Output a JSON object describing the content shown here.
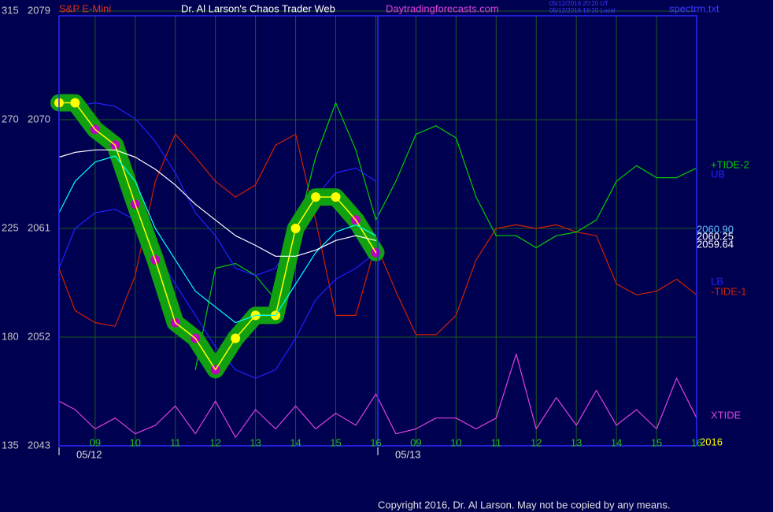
{
  "chart_data": {
    "type": "line",
    "title": "Dr. Al Larson's Chaos Trader Web",
    "instrument": "S&P E-Mini",
    "website": "Daytradingforecasts.com",
    "timestamps": [
      "05/12/2016 20:20 UT",
      "05/12/2016 16:20 Local"
    ],
    "file": "spectrm.txt",
    "copyright": "Copyright 2016, Dr. Al Larson. May not be copied by any means.",
    "year": "2016",
    "dates": [
      "05/12",
      "05/13"
    ],
    "xlim": [
      8.1,
      24
    ],
    "xticks": [
      {
        "value": 9,
        "label": "09"
      },
      10,
      11,
      12,
      13,
      14,
      15,
      16,
      {
        "value": 17,
        "label": "09"
      },
      {
        "value": 18,
        "label": "10"
      },
      {
        "value": 19,
        "label": "11"
      },
      {
        "value": 20,
        "label": "12"
      },
      {
        "value": 21,
        "label": "13"
      },
      {
        "value": 22,
        "label": "14"
      },
      {
        "value": 23,
        "label": "15"
      },
      {
        "value": 24,
        "label": "16"
      }
    ],
    "ylim": [
      2043,
      2079
    ],
    "yticks": [
      2043,
      2052,
      2061,
      2070,
      2079
    ],
    "y2lim": [
      135,
      315
    ],
    "y2ticks": [
      135,
      180,
      225,
      270,
      315
    ],
    "grid": true,
    "x": [
      8.1,
      8.5,
      9,
      9.5,
      10,
      10.5,
      11,
      11.5,
      12,
      12.5,
      13,
      13.5,
      14,
      14.5,
      15,
      15.5,
      16,
      16.5,
      17,
      17.5,
      18,
      18.5,
      19,
      19.5,
      20,
      20.5,
      21,
      21.5,
      22,
      22.5,
      23,
      23.5,
      24
    ],
    "series": [
      {
        "color": "#ffff00",
        "values": [
          2071.4,
          2071.4,
          2069.2,
          2067.9,
          2063.0,
          2058.4,
          2053.2,
          2051.9,
          2049.3,
          2051.9,
          2053.8,
          2053.8,
          2061.0,
          2063.6,
          2063.6,
          2061.7,
          2059.0,
          null,
          null,
          null,
          null,
          null,
          null,
          null,
          null,
          null,
          null,
          null,
          null,
          null,
          null,
          null,
          null
        ]
      },
      {
        "color": "#00ffff",
        "values": [
          2062.3,
          2064.9,
          2066.5,
          2067.0,
          2064.9,
          2061.0,
          2058.4,
          2055.8,
          2054.5,
          2053.2,
          2053.8,
          2053.8,
          2056.4,
          2059.0,
          2060.7,
          2061.3,
          2060.4,
          null,
          null,
          null,
          null,
          null,
          null,
          null,
          null,
          null,
          null,
          null,
          null,
          null,
          null,
          null,
          null
        ]
      },
      {
        "color": "#ffffff",
        "values": [
          2066.9,
          2067.3,
          2067.5,
          2067.5,
          2066.9,
          2065.9,
          2064.6,
          2063.0,
          2061.7,
          2060.4,
          2059.6,
          2058.7,
          2058.7,
          2059.2,
          2060.0,
          2060.4,
          2060.0,
          null,
          null,
          null,
          null,
          null,
          null,
          null,
          null,
          null,
          null,
          null,
          null,
          null,
          null,
          null,
          null
        ]
      },
      {
        "name": "UB",
        "color": "#2020ff",
        "values": [
          2070.8,
          2071.1,
          2071.4,
          2071.1,
          2070.1,
          2068.2,
          2065.6,
          2062.3,
          2060.4,
          2057.7,
          2057.1,
          2057.7,
          2060.4,
          2063.6,
          2065.6,
          2066.0,
          2064.9,
          null,
          null,
          null,
          null,
          null,
          null,
          null,
          null,
          null,
          null,
          null,
          null,
          null,
          null,
          null,
          null
        ]
      },
      {
        "name": "LB",
        "color": "#2020ff",
        "values": [
          2057.7,
          2061.0,
          2062.3,
          2062.6,
          2061.7,
          2059.0,
          2056.4,
          2053.8,
          2051.2,
          2049.3,
          2048.6,
          2049.3,
          2051.9,
          2055.1,
          2056.8,
          2057.7,
          2059.0,
          null,
          null,
          null,
          null,
          null,
          null,
          null,
          null,
          null,
          null,
          null,
          null,
          null,
          null,
          null,
          null
        ]
      },
      {
        "name": "+TIDE-2",
        "color": "#00cc00",
        "values": [
          null,
          null,
          null,
          null,
          null,
          null,
          null,
          2049.3,
          2057.7,
          2058.1,
          2057.1,
          2055.1,
          2060.4,
          2066.9,
          2071.4,
          2067.5,
          2061.7,
          2064.9,
          2068.8,
          2069.5,
          2068.5,
          2063.6,
          2060.4,
          2060.4,
          2059.4,
          2060.4,
          2060.7,
          2061.7,
          2064.9,
          2066.2,
          2065.2,
          2065.2,
          2066.0
        ]
      },
      {
        "name": "-TIDE-1",
        "color": "#d02000",
        "values": [
          2057.7,
          2054.2,
          2053.2,
          2052.9,
          2057.1,
          2064.9,
          2068.8,
          2066.9,
          2064.9,
          2063.6,
          2064.6,
          2067.9,
          2068.8,
          2061.7,
          2053.8,
          2053.8,
          2059.7,
          2055.8,
          2052.2,
          2052.2,
          2053.8,
          2058.4,
          2061.0,
          2061.3,
          2061.0,
          2061.3,
          2060.7,
          2060.4,
          2056.4,
          2055.5,
          2055.8,
          2056.8,
          2055.5
        ]
      },
      {
        "name": "XTIDE",
        "color": "#e040e0",
        "values": [
          2046.7,
          2046.0,
          2044.4,
          2045.3,
          2044.0,
          2044.7,
          2046.3,
          2044.0,
          2046.7,
          2043.7,
          2046.0,
          2044.4,
          2046.3,
          2044.4,
          2045.7,
          2044.7,
          2047.3,
          2044.0,
          2044.4,
          2045.3,
          2045.3,
          2044.4,
          2045.3,
          2050.6,
          2044.4,
          2047.0,
          2044.7,
          2047.6,
          2044.7,
          2046.0,
          2044.4,
          2048.6,
          2045.3
        ]
      }
    ],
    "end_values": [
      {
        "value": 2060.9,
        "label": "2060.90"
      },
      {
        "value": 2060.25,
        "label": "2060.25"
      },
      {
        "value": 2059.64,
        "label": "2059.64"
      }
    ]
  }
}
